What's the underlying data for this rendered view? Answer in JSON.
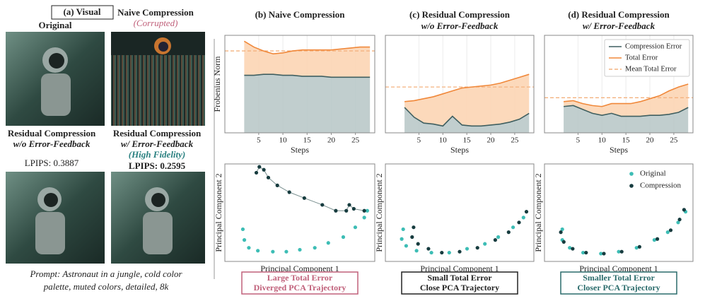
{
  "panel_a": {
    "label": "(a) Visual",
    "images": [
      {
        "title": "Original"
      },
      {
        "title": "Naive Compression",
        "note": "(Corrupted)"
      },
      {
        "title": "Residual Compression",
        "subtitle": "w/o Error-Feedback",
        "metric": "LPIPS: 0.3887"
      },
      {
        "title": "Residual Compression",
        "subtitle": "w/ Error-Feedback",
        "note": "(High Fidelity)",
        "metric": "LPIPS: 0.2595"
      }
    ],
    "prompt": [
      "Prompt: Astronaut in a jungle, cold color",
      "palette, muted colors, detailed, 8k"
    ]
  },
  "chart_data": [
    {
      "type": "line",
      "title": "(b) Naive Compression",
      "x": [
        2,
        4,
        6,
        8,
        10,
        12,
        14,
        16,
        18,
        20,
        22,
        24,
        26,
        28
      ],
      "series": [
        {
          "color": "#3f5f60",
          "values": [
            0.59,
            0.59,
            0.6,
            0.6,
            0.59,
            0.59,
            0.58,
            0.58,
            0.58,
            0.57,
            0.57,
            0.57,
            0.57,
            0.57
          ]
        },
        {
          "color": "#f0883a",
          "values": [
            0.94,
            0.88,
            0.84,
            0.81,
            0.82,
            0.84,
            0.85,
            0.85,
            0.85,
            0.85,
            0.86,
            0.87,
            0.88,
            0.88
          ]
        }
      ],
      "mean_line": {
        "color": "#f4b27f",
        "value": 0.84
      },
      "xlabel": "Steps",
      "ylabel": "Frobenius Norm",
      "xlim": [
        -2,
        29
      ],
      "ylim": [
        0,
        1
      ],
      "xticks": [
        5,
        10,
        15,
        20,
        25
      ],
      "grid": true
    },
    {
      "type": "scatter",
      "series": [
        {
          "color": "#3dbdb5",
          "x": [
            0.12,
            0.13,
            0.16,
            0.22,
            0.32,
            0.41,
            0.5,
            0.6,
            0.69,
            0.79,
            0.87,
            0.93,
            0.95
          ],
          "values": [
            0.33,
            0.22,
            0.14,
            0.11,
            0.1,
            0.1,
            0.12,
            0.14,
            0.19,
            0.25,
            0.35,
            0.45,
            0.52
          ]
        },
        {
          "color": "#173c3f",
          "connected": true,
          "x": [
            0.21,
            0.23,
            0.26,
            0.29,
            0.35,
            0.43,
            0.53,
            0.65,
            0.74,
            0.81,
            0.83,
            0.86,
            0.93
          ],
          "values": [
            0.91,
            0.97,
            0.94,
            0.86,
            0.78,
            0.71,
            0.65,
            0.58,
            0.52,
            0.52,
            0.58,
            0.54,
            0.52
          ]
        }
      ],
      "xlabel": "Principal Component 1",
      "ylabel": "Principal Component 2",
      "xlim": [
        0,
        1
      ],
      "ylim": [
        0,
        1
      ]
    },
    {
      "type": "line",
      "title": "(c) Residual Compression",
      "subtitle": "w/o Error-Feedback",
      "x": [
        2,
        4,
        6,
        8,
        10,
        12,
        14,
        16,
        18,
        20,
        22,
        24,
        26,
        28
      ],
      "series": [
        {
          "color": "#3f5f60",
          "values": [
            0.26,
            0.16,
            0.1,
            0.09,
            0.07,
            0.17,
            0.08,
            0.07,
            0.07,
            0.08,
            0.09,
            0.11,
            0.14,
            0.2
          ]
        },
        {
          "color": "#f0883a",
          "values": [
            0.32,
            0.33,
            0.35,
            0.37,
            0.4,
            0.43,
            0.46,
            0.47,
            0.48,
            0.49,
            0.51,
            0.54,
            0.57,
            0.6
          ]
        }
      ],
      "mean_line": {
        "color": "#f4b27f",
        "value": 0.47
      },
      "xlabel": "Steps",
      "xlim": [
        -2,
        29
      ],
      "ylim": [
        0,
        1
      ],
      "xticks": [
        5,
        10,
        15,
        20,
        25
      ],
      "grid": true
    },
    {
      "type": "scatter",
      "series": [
        {
          "color": "#3dbdb5",
          "x": [
            0.12,
            0.11,
            0.14,
            0.21,
            0.31,
            0.43,
            0.55,
            0.67,
            0.76,
            0.86,
            0.93
          ],
          "values": [
            0.33,
            0.23,
            0.16,
            0.11,
            0.09,
            0.09,
            0.13,
            0.18,
            0.25,
            0.35,
            0.45
          ]
        },
        {
          "color": "#173c3f",
          "x": [
            0.19,
            0.18,
            0.22,
            0.29,
            0.38,
            0.5,
            0.62,
            0.74,
            0.83,
            0.9,
            0.95
          ],
          "values": [
            0.35,
            0.25,
            0.18,
            0.13,
            0.09,
            0.1,
            0.14,
            0.22,
            0.3,
            0.4,
            0.51
          ]
        }
      ],
      "xlabel": "Principal Component 1",
      "ylabel": "Principal Component 2",
      "xlim": [
        0,
        1
      ],
      "ylim": [
        0,
        1
      ]
    },
    {
      "type": "line",
      "title": "(d) Residual Compression",
      "subtitle": "w/ Error-Feedback",
      "x": [
        2,
        4,
        6,
        8,
        10,
        12,
        14,
        16,
        18,
        20,
        22,
        24,
        26,
        28
      ],
      "series": [
        {
          "name": "Compression Error",
          "color": "#3f5f60",
          "values": [
            0.27,
            0.28,
            0.24,
            0.2,
            0.18,
            0.2,
            0.17,
            0.17,
            0.17,
            0.18,
            0.18,
            0.19,
            0.21,
            0.26
          ]
        },
        {
          "name": "Total Error",
          "color": "#f0883a",
          "values": [
            0.32,
            0.33,
            0.3,
            0.28,
            0.27,
            0.3,
            0.3,
            0.3,
            0.32,
            0.35,
            0.38,
            0.43,
            0.47,
            0.5
          ]
        }
      ],
      "mean_line": {
        "name": "Mean Total Error",
        "color": "#f4b27f",
        "value": 0.36
      },
      "xlabel": "Steps",
      "legend": "upper right",
      "xlim": [
        -2,
        29
      ],
      "ylim": [
        0,
        1
      ],
      "xticks": [
        5,
        10,
        15,
        20,
        25
      ],
      "grid": true
    },
    {
      "type": "scatter",
      "series": [
        {
          "name": "Original",
          "color": "#3dbdb5",
          "x": [
            0.12,
            0.12,
            0.17,
            0.26,
            0.38,
            0.5,
            0.62,
            0.74,
            0.83,
            0.9,
            0.95
          ],
          "values": [
            0.33,
            0.22,
            0.14,
            0.09,
            0.08,
            0.1,
            0.14,
            0.22,
            0.3,
            0.4,
            0.51
          ]
        },
        {
          "name": "Compression",
          "color": "#173c3f",
          "x": [
            0.11,
            0.13,
            0.19,
            0.28,
            0.4,
            0.52,
            0.64,
            0.76,
            0.85,
            0.91,
            0.94
          ],
          "values": [
            0.3,
            0.2,
            0.13,
            0.09,
            0.08,
            0.1,
            0.15,
            0.23,
            0.32,
            0.43,
            0.53
          ]
        }
      ],
      "xlabel": "Principal Component 1",
      "ylabel": "Principal Component 2",
      "legend": "upper right",
      "xlim": [
        0,
        1
      ],
      "ylim": [
        0,
        1
      ]
    }
  ],
  "captions": [
    {
      "lines": [
        "Large Total Error",
        "Diverged PCA Trajectory"
      ],
      "color": "#c0607a"
    },
    {
      "lines": [
        "Small Total Error",
        "Close PCA Trajectory"
      ],
      "color": "#222222"
    },
    {
      "lines": [
        "Smaller Total Error",
        "Closer PCA Trajectory"
      ],
      "color": "#2a6b6b"
    }
  ]
}
